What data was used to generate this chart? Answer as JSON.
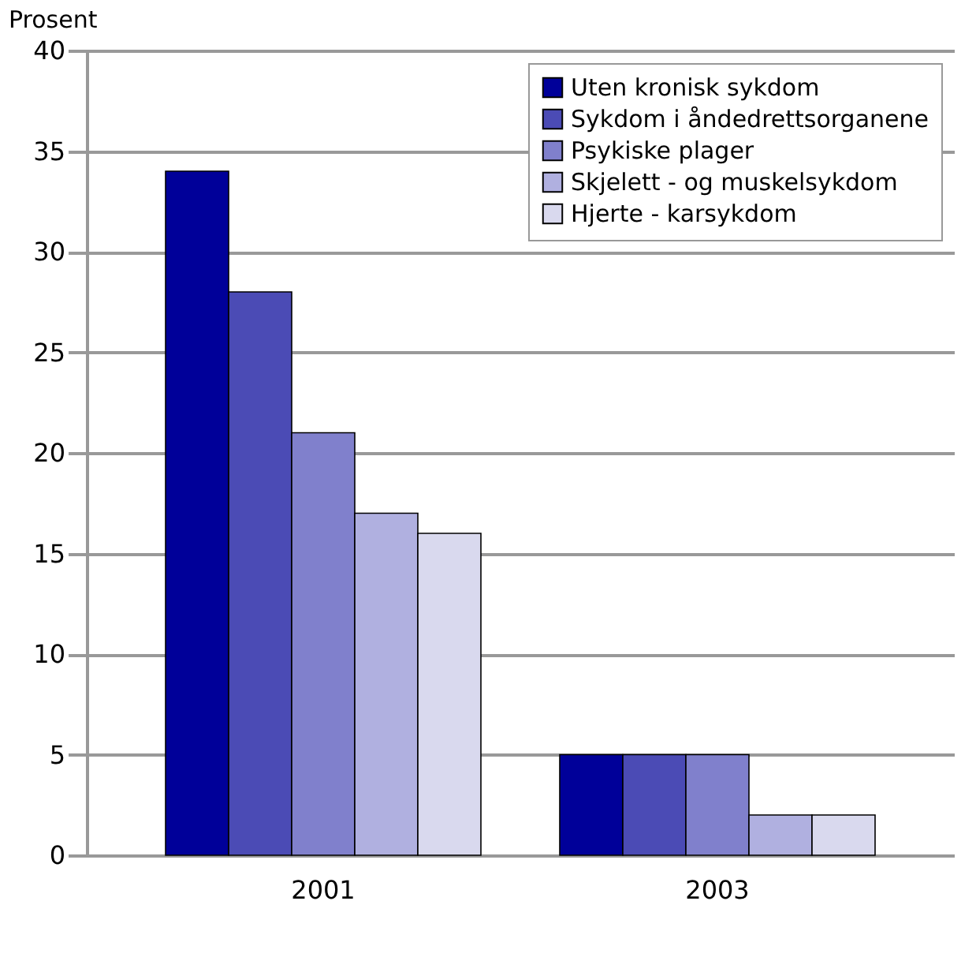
{
  "chart_data": {
    "type": "bar",
    "ylabel": "Prosent",
    "categories": [
      "2001",
      "2003"
    ],
    "series": [
      {
        "name": "Uten kronisk sykdom",
        "color": "#000099",
        "values": [
          34,
          5
        ]
      },
      {
        "name": "Sykdom i åndedrettsorganene",
        "color": "#4b4bb5",
        "values": [
          28,
          5
        ]
      },
      {
        "name": "Psykiske plager",
        "color": "#8080cc",
        "values": [
          21,
          5
        ]
      },
      {
        "name": "Skjelett - og muskelsykdom",
        "color": "#b0b0e0",
        "values": [
          17,
          2
        ]
      },
      {
        "name": "Hjerte - karsykdom",
        "color": "#d9d9ee",
        "values": [
          16,
          2
        ]
      }
    ],
    "ylim": [
      0,
      40
    ],
    "yticks": [
      0,
      5,
      10,
      15,
      20,
      25,
      30,
      35,
      40
    ],
    "grid": "y",
    "legend": "top right"
  }
}
